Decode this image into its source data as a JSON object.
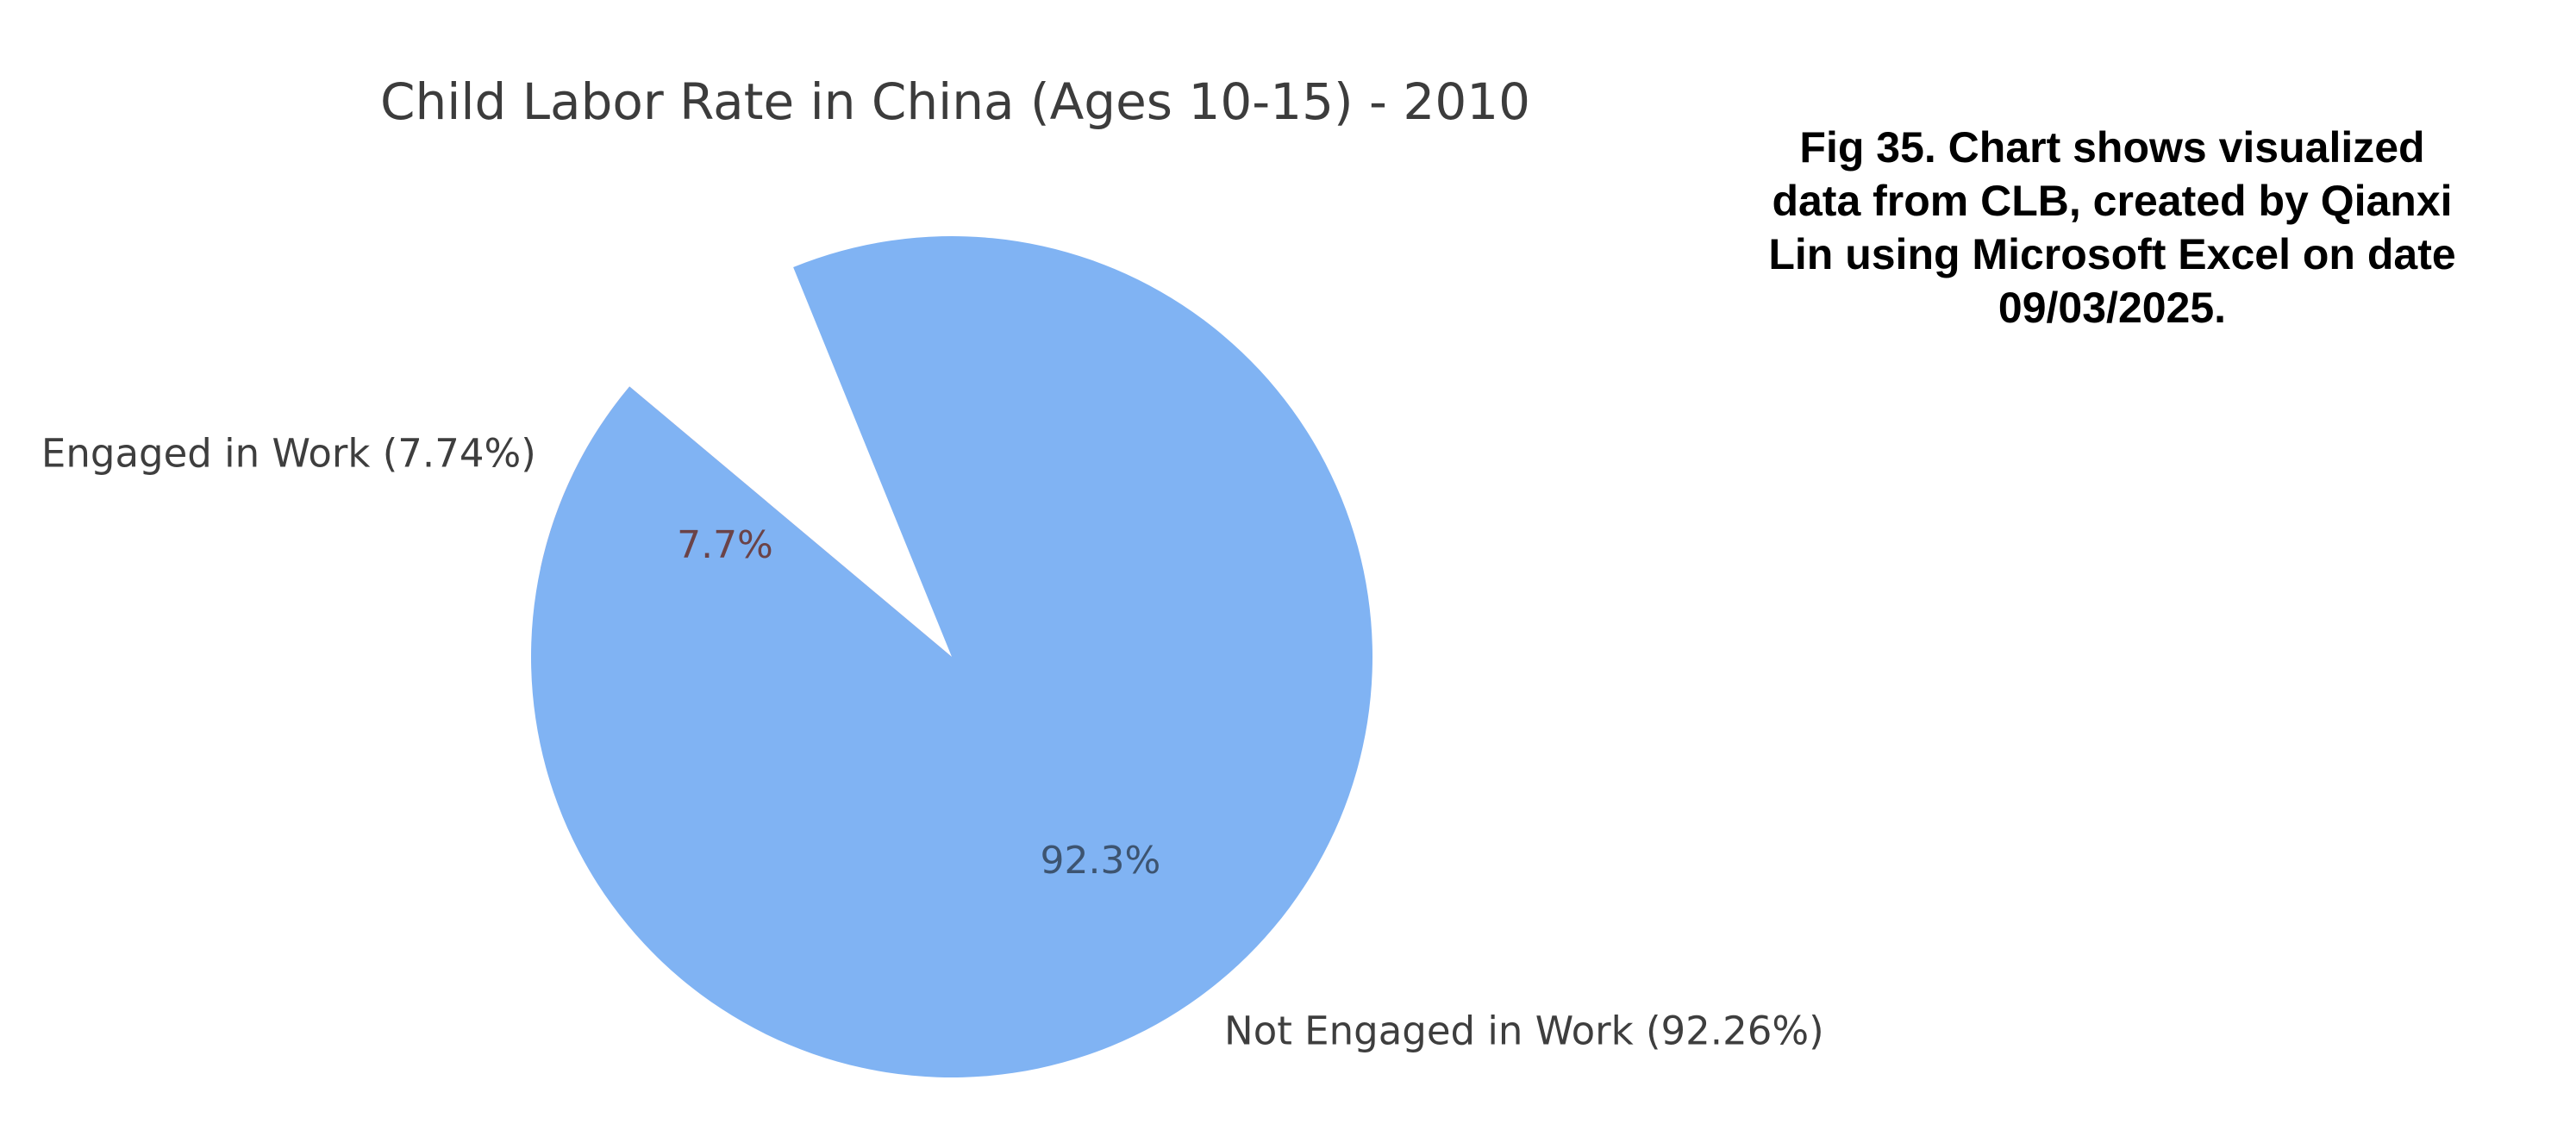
{
  "figure": {
    "background_color": "#ffffff",
    "title_color": "#3c3c3c",
    "label_color": "#3e3e3e"
  },
  "chart_data": {
    "type": "pie",
    "title": "Child Labor Rate in China (Ages 10-15) - 2010",
    "startangle": 140,
    "direction": "counterclockwise",
    "pct_distance": 0.6,
    "label_distance": 1.1,
    "legend_position": "labels-outside-slices",
    "slices": [
      {
        "label": "Engaged in Work",
        "value": 7.74,
        "outside_label": "Engaged in Work (7.74%)",
        "pct_text": "7.7%",
        "color": "#f2a2a2",
        "pct_color": "#6b4348"
      },
      {
        "label": "Not Engaged in Work",
        "value": 92.26,
        "outside_label": "Not Engaged in Work (92.26%)",
        "pct_text": "92.3%",
        "color": "#80b3f3",
        "pct_color": "#3d5470"
      }
    ]
  },
  "caption": {
    "lines": [
      "Fig 35. Chart shows visualized",
      "data from CLB, created by Qianxi",
      "Lin using Microsoft Excel on date",
      "09/03/2025."
    ],
    "color": "#000000"
  }
}
